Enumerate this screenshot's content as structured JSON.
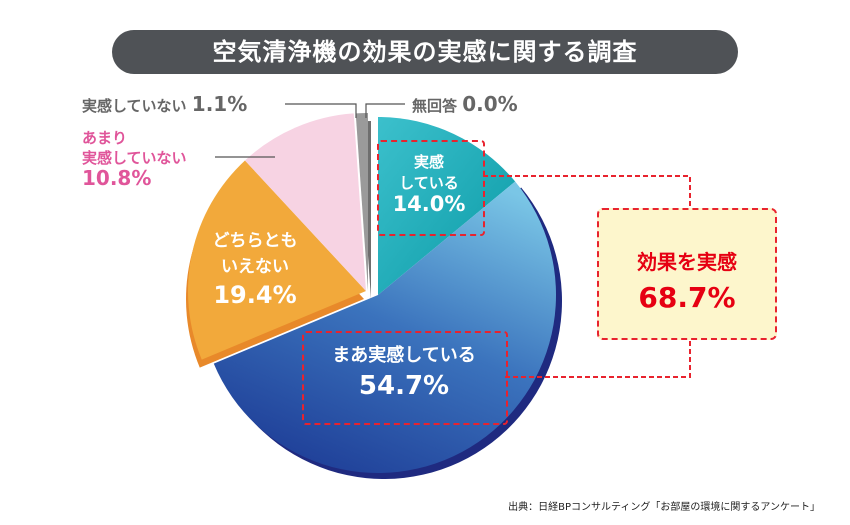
{
  "title": "空気清浄機の効果の実感に関する調査",
  "chart_data": {
    "type": "pie",
    "title": "空気清浄機の効果の実感に関する調査",
    "start": "top",
    "direction": "clockwise",
    "slices": [
      {
        "label": "実感している",
        "value": 14.0,
        "display": "14.0%",
        "color": "#1aa9b4"
      },
      {
        "label": "まあ実感している",
        "value": 54.7,
        "display": "54.7%",
        "color": "#2f5fb0"
      },
      {
        "label": "どちらともいえない",
        "value": 19.4,
        "display": "19.4%",
        "color": "#f2a93b"
      },
      {
        "label": "あまり実感していない",
        "value": 10.8,
        "display": "10.8%",
        "color": "#f7d3e3"
      },
      {
        "label": "実感していない",
        "value": 1.1,
        "display": "1.1%",
        "color": "#9a9a9a"
      },
      {
        "label": "無回答",
        "value": 0.0,
        "display": "0.0%",
        "color": "#888888"
      }
    ],
    "labels": {
      "s0_line1": "実感",
      "s0_line2": "している",
      "s1_line1": "まあ実感している",
      "s2_line1": "どちらとも",
      "s2_line2": "いえない",
      "s3_line1": "あまり",
      "s3_line2": "実感していない",
      "s4_line1": "実感していない"
    },
    "callout": {
      "label": "効果を実感",
      "value": "68.7%"
    }
  },
  "source": "出典：日経BPコンサルティング「お部屋の環境に関するアンケート」"
}
